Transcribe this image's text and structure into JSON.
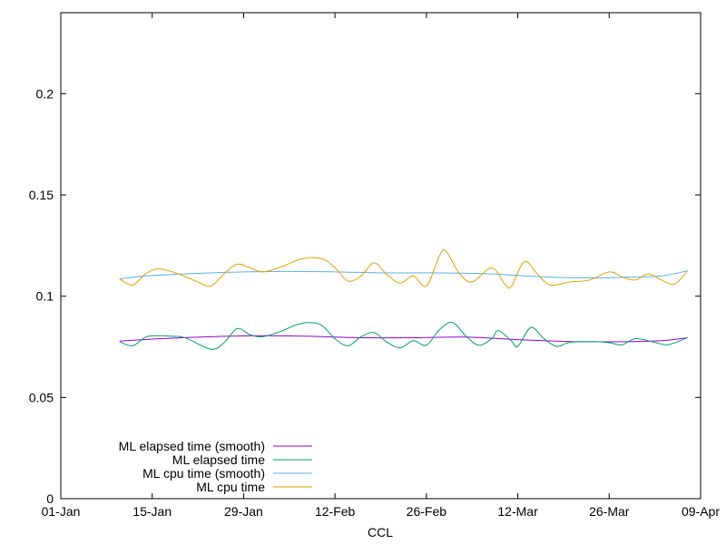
{
  "chart_data": {
    "type": "line",
    "title": "",
    "xlabel": "CCL",
    "ylabel": "",
    "x_axis": {
      "type": "date",
      "range": [
        "2023-01-01",
        "2023-04-09"
      ],
      "ticks": [
        {
          "date": "2023-01-01",
          "label": "01-Jan"
        },
        {
          "date": "2023-01-15",
          "label": "15-Jan"
        },
        {
          "date": "2023-01-29",
          "label": "29-Jan"
        },
        {
          "date": "2023-02-12",
          "label": "12-Feb"
        },
        {
          "date": "2023-02-26",
          "label": "26-Feb"
        },
        {
          "date": "2023-03-12",
          "label": "12-Mar"
        },
        {
          "date": "2023-03-26",
          "label": "26-Mar"
        },
        {
          "date": "2023-04-09",
          "label": "09-Apr"
        }
      ]
    },
    "y_axis": {
      "range": [
        0,
        0.24
      ],
      "ticks": [
        {
          "value": 0,
          "label": "0"
        },
        {
          "value": 0.05,
          "label": "0.05"
        },
        {
          "value": 0.1,
          "label": "0.1"
        },
        {
          "value": 0.15,
          "label": "0.15"
        },
        {
          "value": 0.2,
          "label": "0.2"
        }
      ]
    },
    "grid": false,
    "legend_position": "bottom-left",
    "series": [
      {
        "name": "ML elapsed time (smooth)",
        "color": "#9400d3",
        "points": [
          [
            "2023-01-10",
            0.0778
          ],
          [
            "2023-01-16",
            0.079
          ],
          [
            "2023-01-24",
            0.08
          ],
          [
            "2023-02-01",
            0.0805
          ],
          [
            "2023-02-08",
            0.0802
          ],
          [
            "2023-02-16",
            0.0795
          ],
          [
            "2023-02-24",
            0.0795
          ],
          [
            "2023-03-04",
            0.0798
          ],
          [
            "2023-03-12",
            0.0785
          ],
          [
            "2023-03-20",
            0.0776
          ],
          [
            "2023-03-28",
            0.0775
          ],
          [
            "2023-04-03",
            0.078
          ],
          [
            "2023-04-07",
            0.0795
          ]
        ]
      },
      {
        "name": "ML elapsed time",
        "color": "#009e73",
        "points": [
          [
            "2023-01-10",
            0.0775
          ],
          [
            "2023-01-12",
            0.0755
          ],
          [
            "2023-01-14",
            0.0798
          ],
          [
            "2023-01-16",
            0.0805
          ],
          [
            "2023-01-18",
            0.0802
          ],
          [
            "2023-01-20",
            0.0795
          ],
          [
            "2023-01-24",
            0.0738
          ],
          [
            "2023-01-26",
            0.077
          ],
          [
            "2023-01-28",
            0.084
          ],
          [
            "2023-01-30",
            0.081
          ],
          [
            "2023-02-01",
            0.08
          ],
          [
            "2023-02-04",
            0.083
          ],
          [
            "2023-02-06",
            0.0858
          ],
          [
            "2023-02-08",
            0.087
          ],
          [
            "2023-02-10",
            0.0855
          ],
          [
            "2023-02-12",
            0.079
          ],
          [
            "2023-02-14",
            0.0755
          ],
          [
            "2023-02-16",
            0.08
          ],
          [
            "2023-02-18",
            0.082
          ],
          [
            "2023-02-20",
            0.0772
          ],
          [
            "2023-02-22",
            0.0745
          ],
          [
            "2023-02-24",
            0.078
          ],
          [
            "2023-02-26",
            0.0758
          ],
          [
            "2023-02-28",
            0.0835
          ],
          [
            "2023-03-02",
            0.087
          ],
          [
            "2023-03-04",
            0.0805
          ],
          [
            "2023-03-06",
            0.0758
          ],
          [
            "2023-03-08",
            0.079
          ],
          [
            "2023-03-09",
            0.083
          ],
          [
            "2023-03-11",
            0.078
          ],
          [
            "2023-03-12",
            0.0752
          ],
          [
            "2023-03-14",
            0.0845
          ],
          [
            "2023-03-16",
            0.079
          ],
          [
            "2023-03-18",
            0.0752
          ],
          [
            "2023-03-20",
            0.0772
          ],
          [
            "2023-03-24",
            0.0775
          ],
          [
            "2023-03-26",
            0.077
          ],
          [
            "2023-03-28",
            0.076
          ],
          [
            "2023-03-30",
            0.079
          ],
          [
            "2023-04-02",
            0.0772
          ],
          [
            "2023-04-04",
            0.076
          ],
          [
            "2023-04-07",
            0.0795
          ]
        ]
      },
      {
        "name": "ML cpu time (smooth)",
        "color": "#56b4e9",
        "points": [
          [
            "2023-01-10",
            0.1085
          ],
          [
            "2023-01-14",
            0.11
          ],
          [
            "2023-01-20",
            0.111
          ],
          [
            "2023-01-27",
            0.1118
          ],
          [
            "2023-02-04",
            0.1122
          ],
          [
            "2023-02-12",
            0.112
          ],
          [
            "2023-02-20",
            0.1115
          ],
          [
            "2023-02-28",
            0.1115
          ],
          [
            "2023-03-08",
            0.111
          ],
          [
            "2023-03-16",
            0.1095
          ],
          [
            "2023-03-24",
            0.109
          ],
          [
            "2023-03-30",
            0.1095
          ],
          [
            "2023-04-03",
            0.11
          ],
          [
            "2023-04-07",
            0.1125
          ]
        ]
      },
      {
        "name": "ML cpu time",
        "color": "#e69f00",
        "points": [
          [
            "2023-01-10",
            0.1085
          ],
          [
            "2023-01-12",
            0.1055
          ],
          [
            "2023-01-14",
            0.111
          ],
          [
            "2023-01-16",
            0.1135
          ],
          [
            "2023-01-19",
            0.111
          ],
          [
            "2023-01-22",
            0.107
          ],
          [
            "2023-01-24",
            0.105
          ],
          [
            "2023-01-26",
            0.111
          ],
          [
            "2023-01-28",
            0.1158
          ],
          [
            "2023-01-30",
            0.114
          ],
          [
            "2023-02-01",
            0.112
          ],
          [
            "2023-02-04",
            0.1148
          ],
          [
            "2023-02-07",
            0.1185
          ],
          [
            "2023-02-10",
            0.1185
          ],
          [
            "2023-02-12",
            0.114
          ],
          [
            "2023-02-14",
            0.1075
          ],
          [
            "2023-02-16",
            0.11
          ],
          [
            "2023-02-18",
            0.1165
          ],
          [
            "2023-02-20",
            0.1105
          ],
          [
            "2023-02-22",
            0.1065
          ],
          [
            "2023-02-24",
            0.11
          ],
          [
            "2023-02-26",
            0.105
          ],
          [
            "2023-02-28",
            0.12
          ],
          [
            "2023-03-01",
            0.1222
          ],
          [
            "2023-03-03",
            0.1115
          ],
          [
            "2023-03-05",
            0.107
          ],
          [
            "2023-03-08",
            0.114
          ],
          [
            "2023-03-10",
            0.106
          ],
          [
            "2023-03-11",
            0.1048
          ],
          [
            "2023-03-13",
            0.117
          ],
          [
            "2023-03-15",
            0.111
          ],
          [
            "2023-03-17",
            0.1055
          ],
          [
            "2023-03-20",
            0.107
          ],
          [
            "2023-03-23",
            0.108
          ],
          [
            "2023-03-26",
            0.112
          ],
          [
            "2023-03-28",
            0.1095
          ],
          [
            "2023-03-30",
            0.108
          ],
          [
            "2023-04-01",
            0.111
          ],
          [
            "2023-04-03",
            0.108
          ],
          [
            "2023-04-05",
            0.106
          ],
          [
            "2023-04-07",
            0.1125
          ]
        ]
      }
    ]
  }
}
